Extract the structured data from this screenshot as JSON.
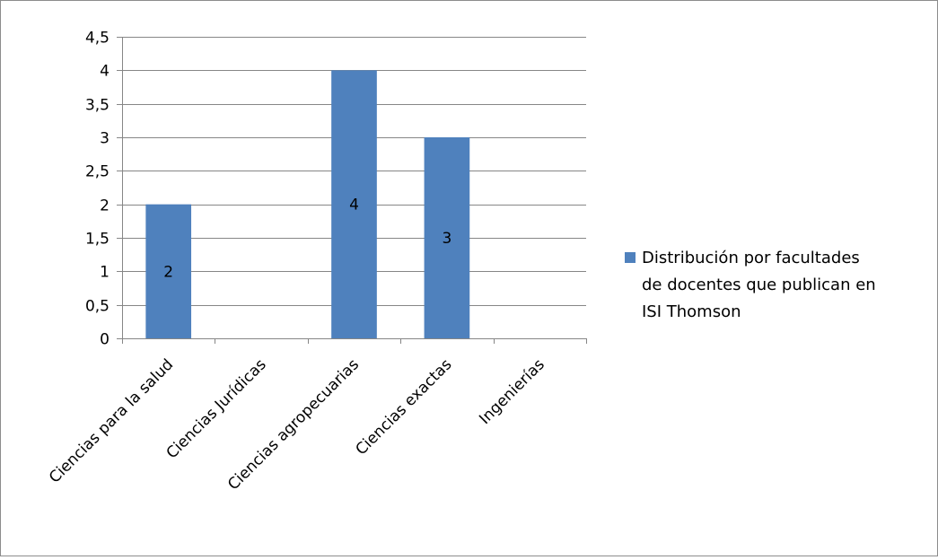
{
  "chart_data": {
    "type": "bar",
    "categories": [
      "Ciencias para la salud",
      "Ciencias Jurídicas",
      "Ciencias agropecuarias",
      "Ciencias exactas",
      "Ingenierías"
    ],
    "series": [
      {
        "name": "Distribución por facultades de docentes que publican en ISI Thomson",
        "values": [
          2,
          0,
          4,
          3,
          0
        ],
        "data_labels": [
          "2",
          "",
          "4",
          "3",
          ""
        ]
      }
    ],
    "y_ticks": [
      "0",
      "0,5",
      "1",
      "1,5",
      "2",
      "2,5",
      "3",
      "3,5",
      "4",
      "4,5"
    ],
    "ylim": [
      0,
      4.5
    ],
    "grid": true,
    "legend_position": "right",
    "bar_color": "#4f81bd"
  },
  "legend": {
    "lines": [
      "Distribución por facultades",
      "de docentes que publican en",
      "ISI Thomson"
    ]
  }
}
